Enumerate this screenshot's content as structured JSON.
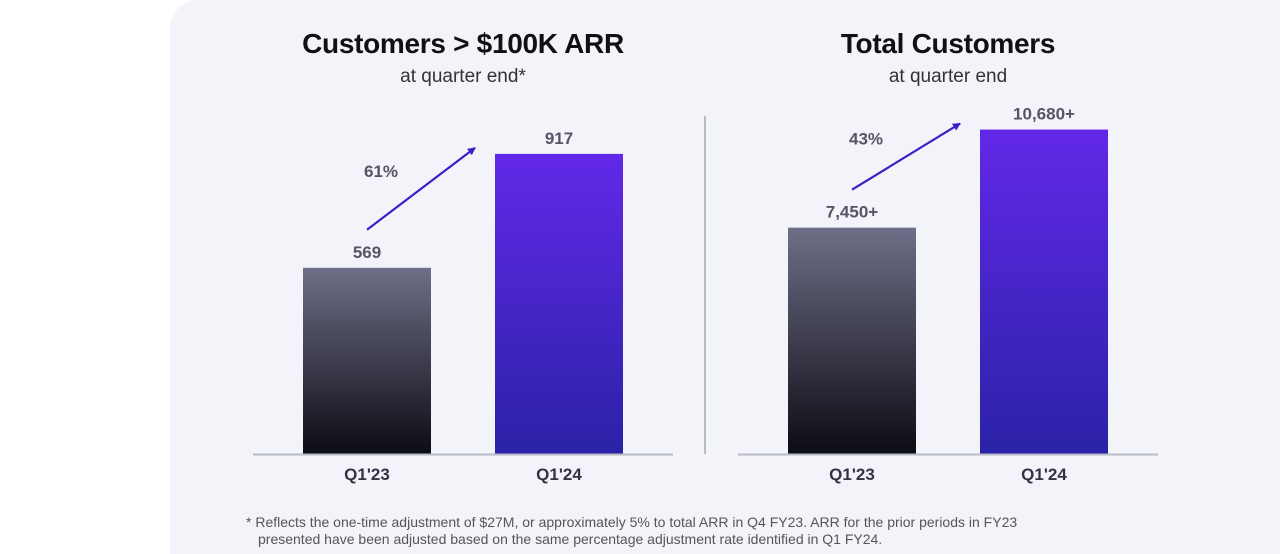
{
  "colors": {
    "bar_prior_top": "#6e6e88",
    "bar_prior_bottom": "#0c0c14",
    "bar_current_top": "#6228e8",
    "bar_current_bottom": "#2a22a6",
    "arrow": "#3d1fc8",
    "baseline": "#b8bac4",
    "value_label": "#555566"
  },
  "chart_data": [
    {
      "type": "bar",
      "title": "Customers > $100K ARR",
      "subtitle": "at quarter end*",
      "categories": [
        "Q1'23",
        "Q1'24"
      ],
      "values": [
        569,
        917
      ],
      "value_labels": [
        "569",
        "917"
      ],
      "growth_label": "61%",
      "ylim": [
        0,
        1100
      ],
      "grid": false,
      "legend": "none"
    },
    {
      "type": "bar",
      "title": "Total Customers",
      "subtitle": "at quarter end",
      "categories": [
        "Q1'23",
        "Q1'24"
      ],
      "values": [
        7450,
        10680
      ],
      "value_labels": [
        "7,450+",
        "10,680+"
      ],
      "growth_label": "43%",
      "ylim": [
        0,
        11850
      ],
      "grid": false,
      "legend": "none"
    }
  ],
  "footnote": {
    "line1": "* Reflects the one-time adjustment of $27M, or approximately 5% to total ARR in Q4 FY23. ARR for the prior periods in FY23",
    "line2": "presented have been adjusted based on the same percentage adjustment rate identified in Q1 FY24."
  }
}
